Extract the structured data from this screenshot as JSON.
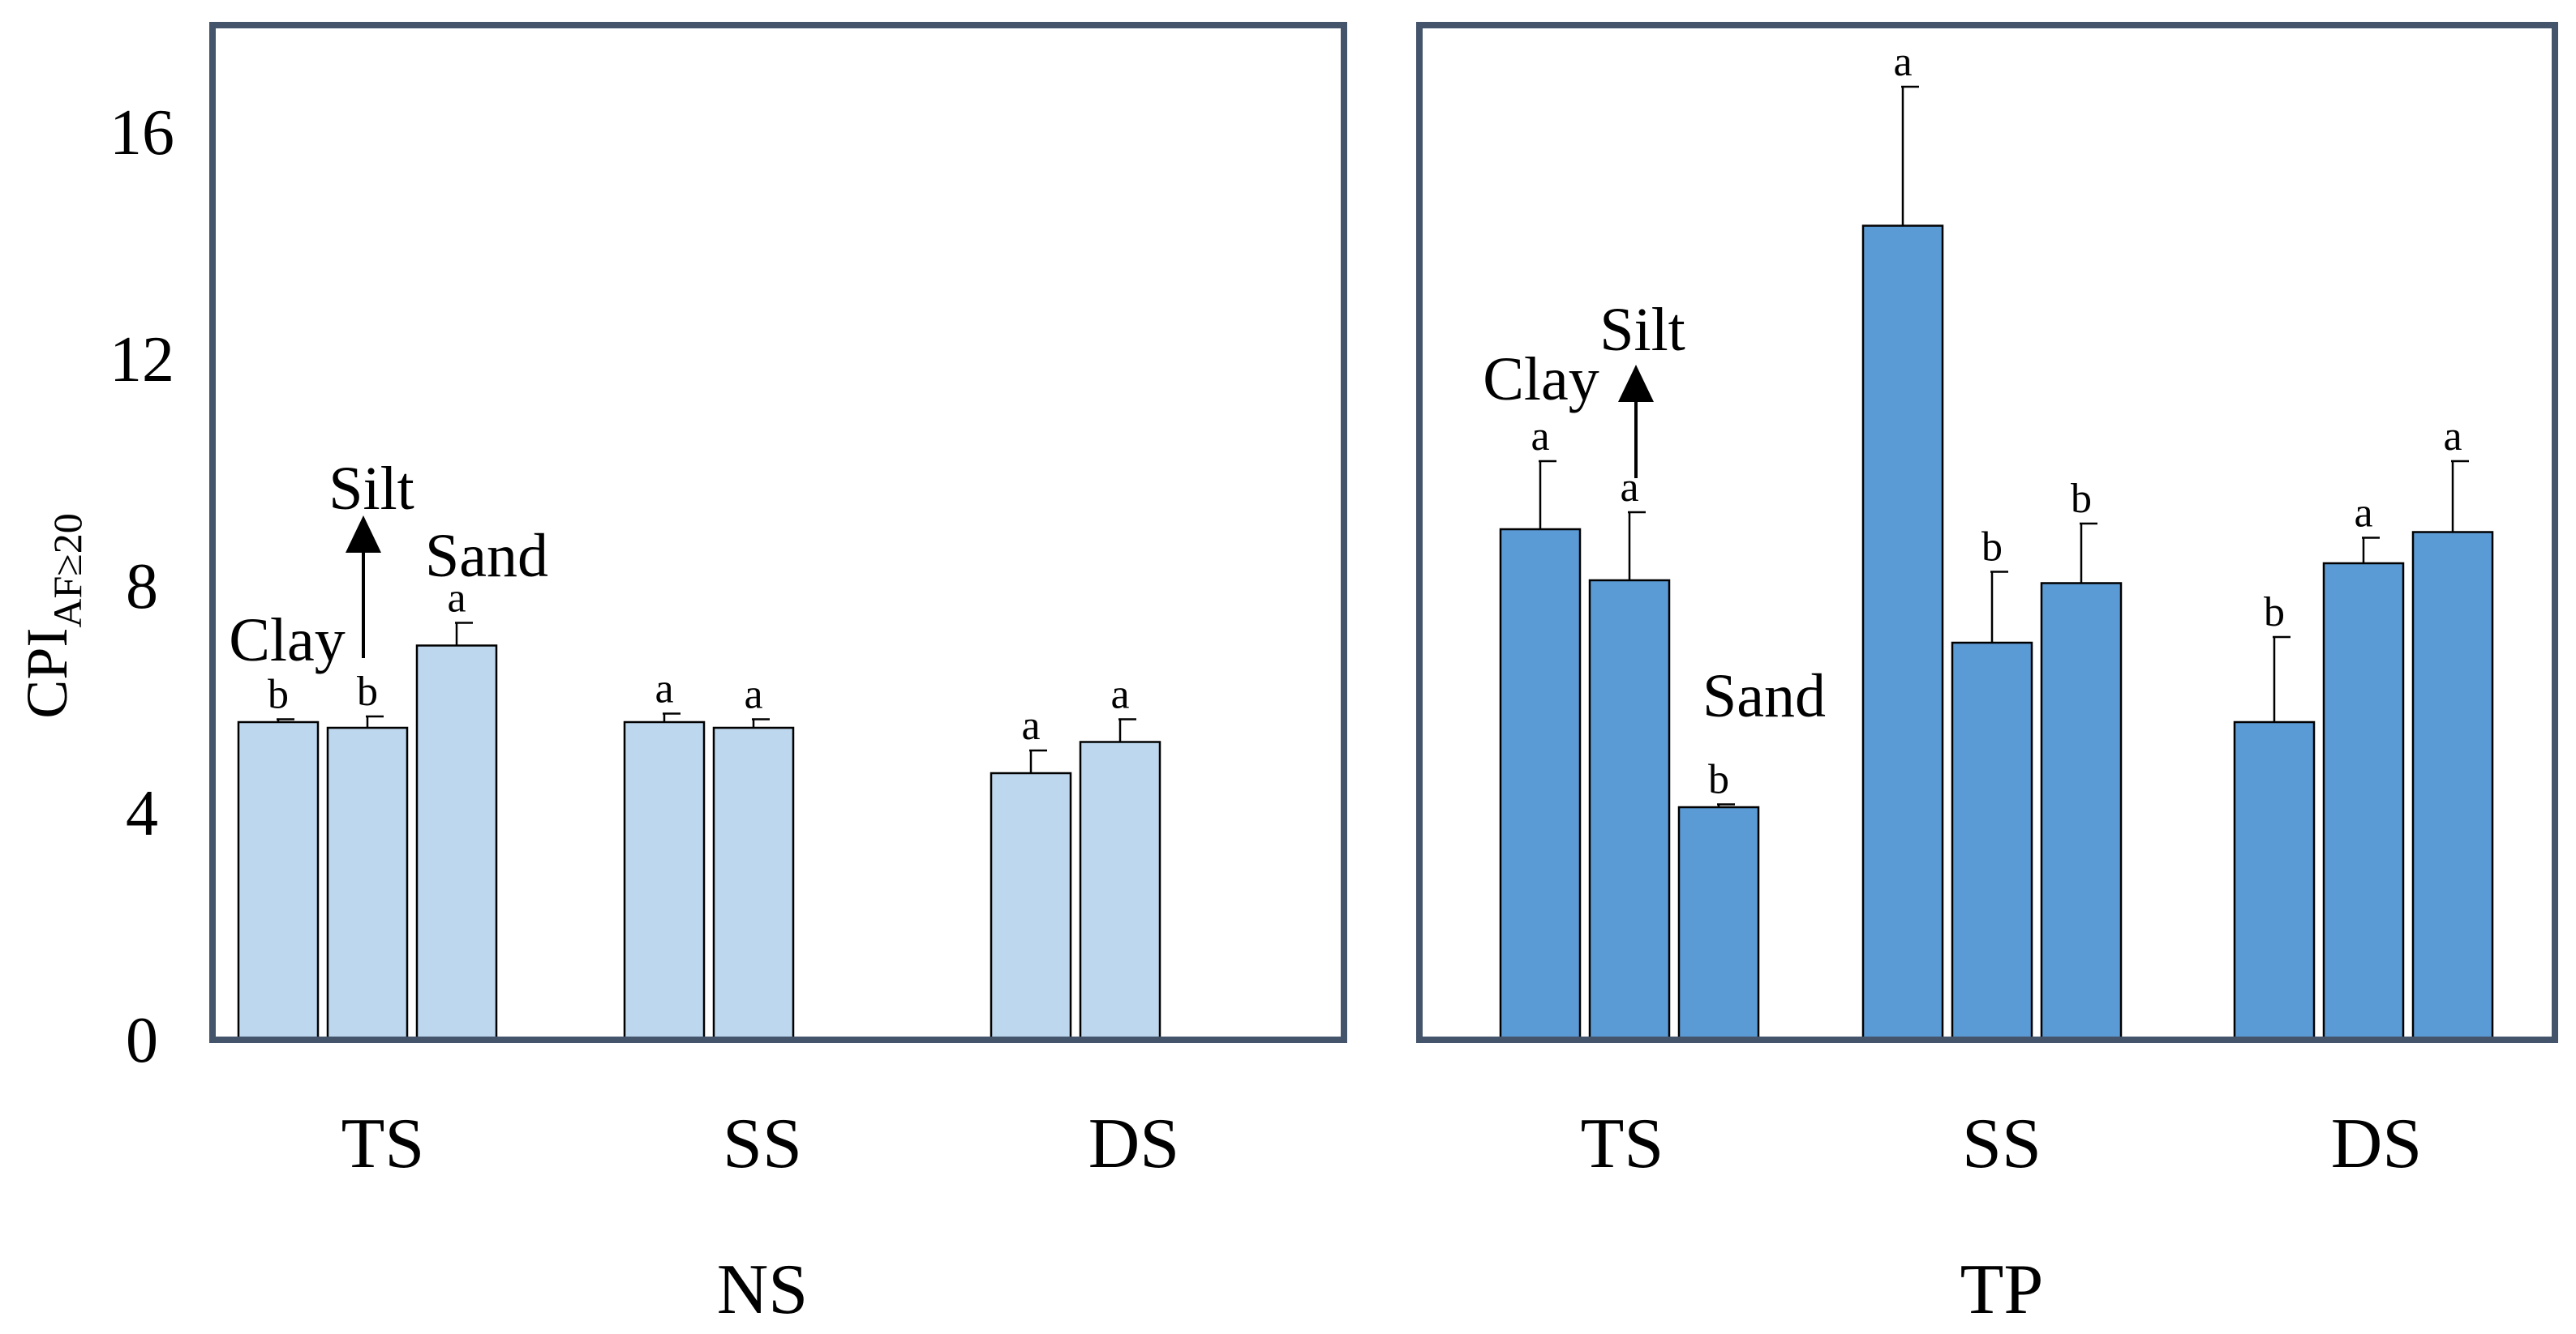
{
  "chart_data": {
    "type": "bar",
    "ylabel": {
      "base": "CPI",
      "subscript": "AF≥20"
    },
    "ylim": [
      0,
      18
    ],
    "yticks": [
      0,
      4,
      8,
      12,
      16
    ],
    "series_names": [
      "Clay",
      "Silt",
      "Sand"
    ],
    "colors": {
      "NS": "#bdd7ee",
      "TP": "#5b9bd5",
      "frame": "#44546a",
      "bar_edge": "#000000"
    },
    "panels": [
      {
        "label": "NS",
        "groups": [
          {
            "label": "TS",
            "bars": [
              {
                "series": "Clay",
                "value": 5.6,
                "error": 0.05,
                "letter": "b"
              },
              {
                "series": "Silt",
                "value": 5.5,
                "error": 0.2,
                "letter": "b"
              },
              {
                "series": "Sand",
                "value": 6.95,
                "error": 0.4,
                "letter": "a"
              }
            ]
          },
          {
            "label": "SS",
            "bars": [
              {
                "series": "Clay",
                "value": 5.6,
                "error": 0.15,
                "letter": "a"
              },
              {
                "series": "Silt",
                "value": 5.5,
                "error": 0.15,
                "letter": "a"
              },
              {
                "series": "Sand",
                "value": 0.05,
                "error": 0,
                "letter": ""
              }
            ]
          },
          {
            "label": "DS",
            "bars": [
              {
                "series": "Clay",
                "value": 4.7,
                "error": 0.4,
                "letter": "a"
              },
              {
                "series": "Silt",
                "value": 5.25,
                "error": 0.4,
                "letter": "a"
              }
            ]
          }
        ],
        "annotations": {
          "clay": "Clay",
          "silt": "Silt",
          "sand": "Sand"
        }
      },
      {
        "label": "TP",
        "groups": [
          {
            "label": "TS",
            "bars": [
              {
                "series": "Clay",
                "value": 9.0,
                "error": 1.2,
                "letter": "a"
              },
              {
                "series": "Silt",
                "value": 8.1,
                "error": 1.2,
                "letter": "a"
              },
              {
                "series": "Sand",
                "value": 4.1,
                "error": 0.05,
                "letter": "b"
              }
            ]
          },
          {
            "label": "SS",
            "bars": [
              {
                "series": "Clay",
                "value": 14.35,
                "error": 2.45,
                "letter": "a"
              },
              {
                "series": "Silt",
                "value": 7.0,
                "error": 1.25,
                "letter": "b"
              },
              {
                "series": "Sand",
                "value": 8.05,
                "error": 1.05,
                "letter": "b"
              }
            ]
          },
          {
            "label": "DS",
            "bars": [
              {
                "series": "Clay",
                "value": 5.6,
                "error": 1.5,
                "letter": "b"
              },
              {
                "series": "Silt",
                "value": 8.4,
                "error": 0.45,
                "letter": "a"
              },
              {
                "series": "Sand",
                "value": 8.95,
                "error": 1.25,
                "letter": "a"
              }
            ]
          }
        ],
        "annotations": {
          "clay": "Clay",
          "silt": "Silt",
          "sand": "Sand"
        }
      }
    ]
  }
}
